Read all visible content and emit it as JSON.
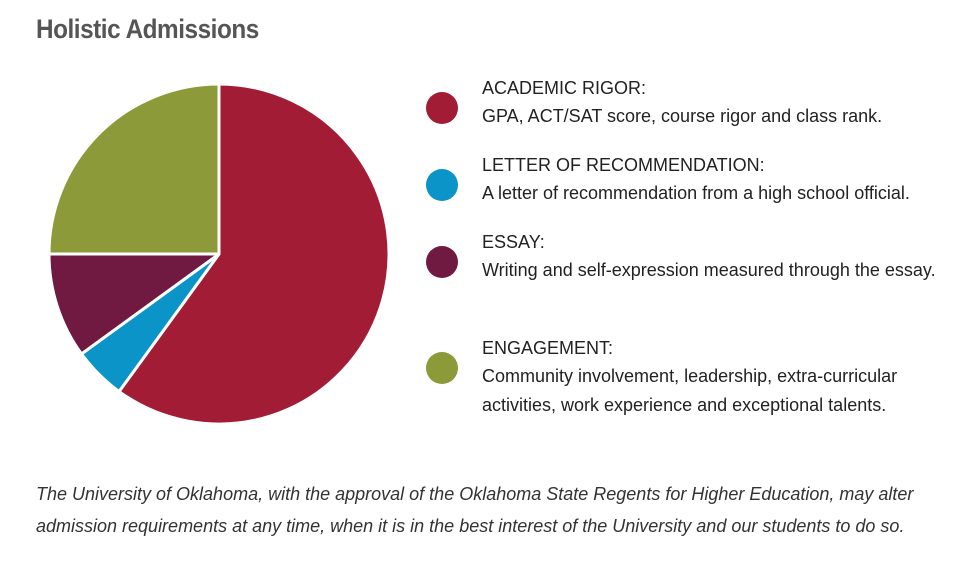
{
  "title": "Holistic Admissions",
  "chart_data": {
    "type": "pie",
    "start_angle_deg": 0,
    "direction": "clockwise",
    "slices": [
      {
        "value": 60,
        "color": "#a31c35"
      },
      {
        "value": 5,
        "color": "#0b94c7"
      },
      {
        "value": 10,
        "color": "#701a41"
      },
      {
        "value": 25,
        "color": "#8c9a3a"
      }
    ]
  },
  "legend": [
    {
      "title": "ACADEMIC RIGOR:",
      "desc": "GPA, ACT/SAT score, course rigor and class rank.",
      "color": "#a31c35"
    },
    {
      "title": "LETTER OF RECOMMENDATION:",
      "desc": "A letter of recommendation from a high school official.",
      "color": "#0b94c7"
    },
    {
      "title": "ESSAY:",
      "desc": "Writing and self-expression measured through the essay.",
      "color": "#701a41"
    },
    {
      "title": "ENGAGEMENT:",
      "desc": "Community involvement, leadership, extra-curricular activities, work experience and exceptional talents.",
      "color": "#8c9a3a"
    }
  ],
  "footnote": "The University of Oklahoma, with the approval of the Oklahoma State Regents for Higher Education, may alter admission requirements at any time, when it is in the best interest of the University and our students to do so."
}
